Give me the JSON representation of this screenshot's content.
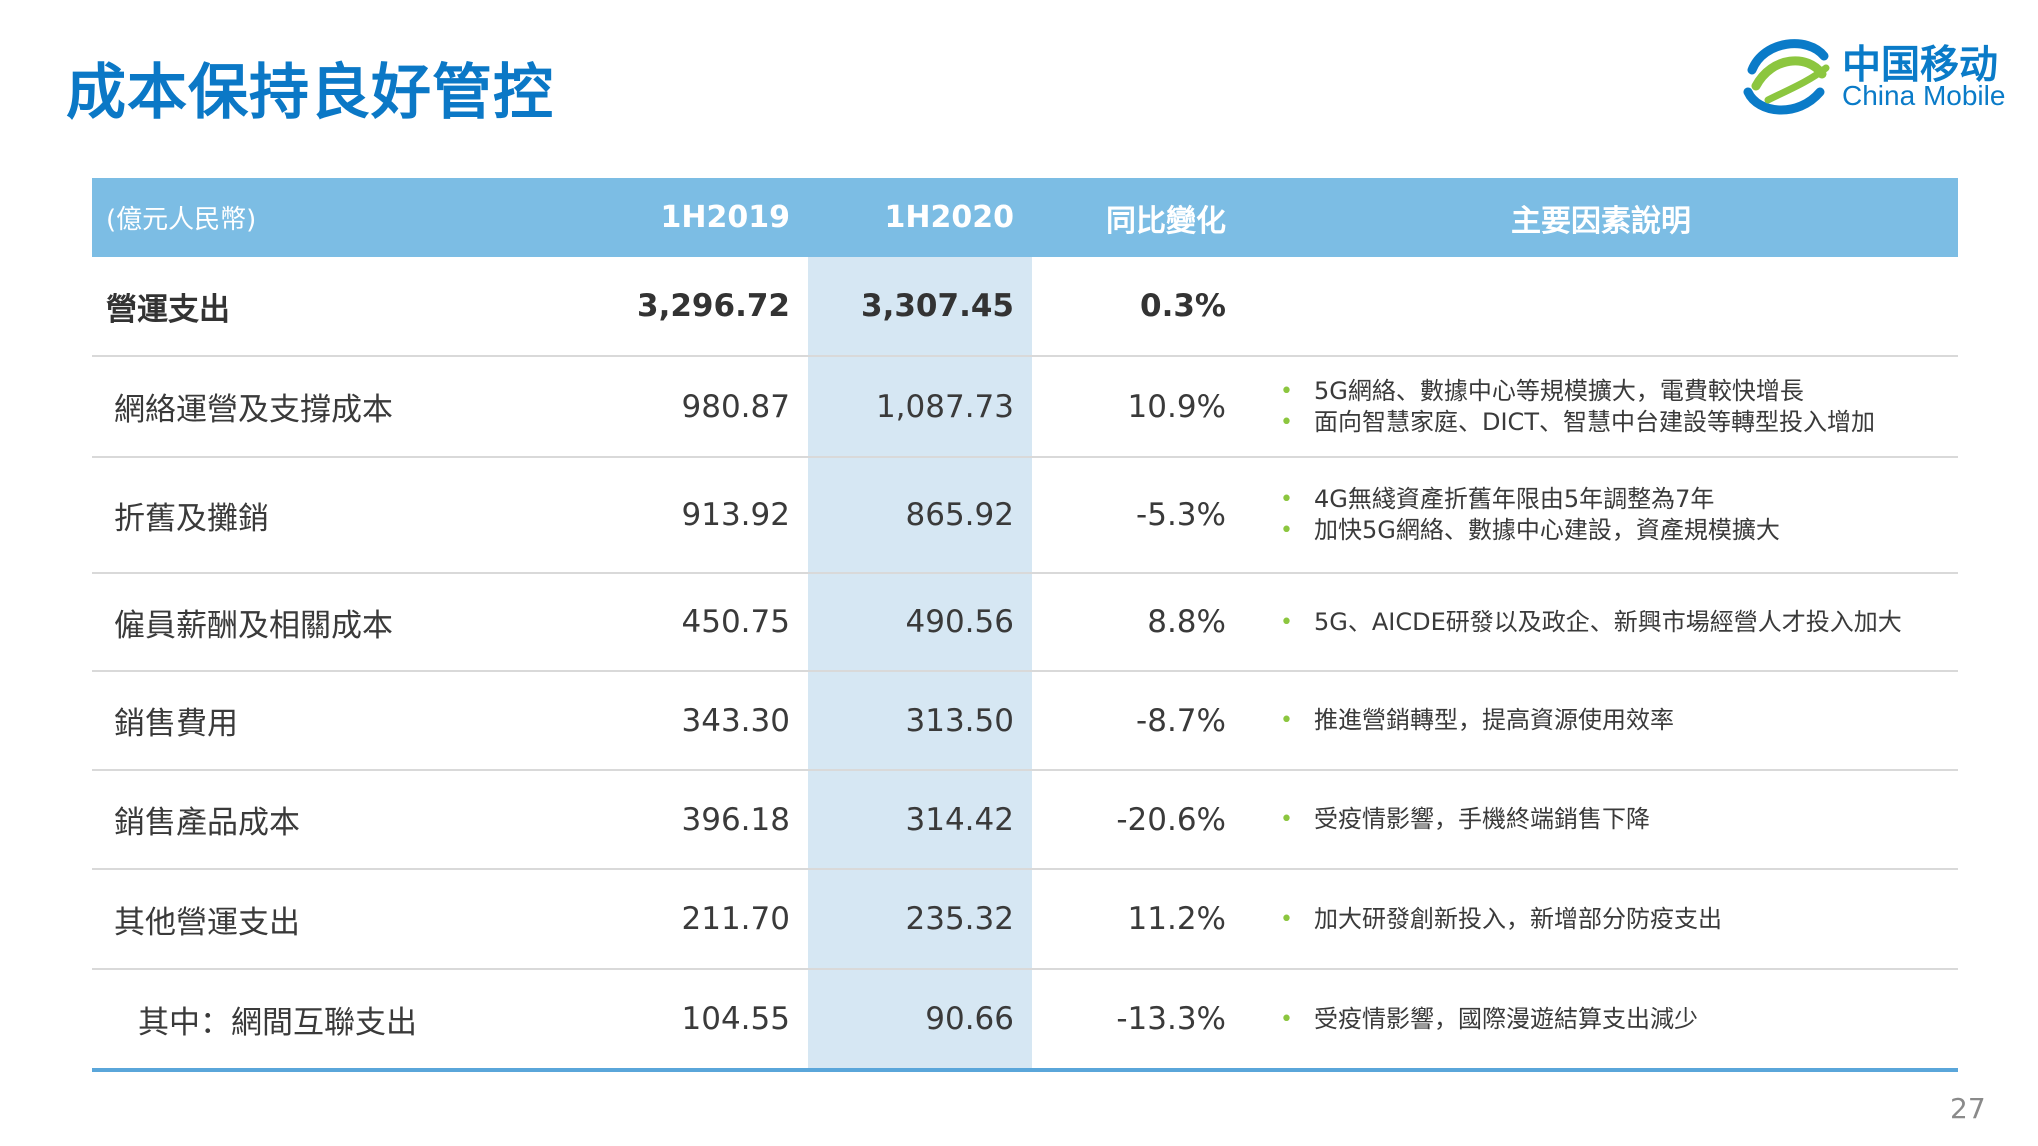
{
  "slide": {
    "title": "成本保持良好管控",
    "page_number": "27"
  },
  "logo": {
    "cn": "中国移动",
    "en": "China Mobile",
    "colors": {
      "blue": "#0a7bc8",
      "green": "#8cc63f"
    }
  },
  "table": {
    "headers": {
      "unit": "(億元人民幣)",
      "col_2019": "1H2019",
      "col_2020": "1H2020",
      "change": "同比變化",
      "factors": "主要因素說明"
    },
    "rows": [
      {
        "label": "營運支出",
        "v2019": "3,296.72",
        "v2020": "3,307.45",
        "change": "0.3%",
        "factors": []
      },
      {
        "label": "網絡運營及支撐成本",
        "v2019": "980.87",
        "v2020": "1,087.73",
        "change": "10.9%",
        "factors": [
          "5G網絡、數據中心等規模擴大，電費較快增長",
          "面向智慧家庭、DICT、智慧中台建設等轉型投入增加"
        ]
      },
      {
        "label": "折舊及攤銷",
        "v2019": "913.92",
        "v2020": "865.92",
        "change": "-5.3%",
        "factors": [
          "4G無綫資產折舊年限由5年調整為7年",
          "加快5G網絡、數據中心建設，資產規模擴大"
        ]
      },
      {
        "label": "僱員薪酬及相關成本",
        "v2019": "450.75",
        "v2020": "490.56",
        "change": "8.8%",
        "factors": [
          "5G、AICDE研發以及政企、新興市場經營人才投入加大"
        ]
      },
      {
        "label": "銷售費用",
        "v2019": "343.30",
        "v2020": "313.50",
        "change": "-8.7%",
        "factors": [
          "推進營銷轉型，提高資源使用效率"
        ]
      },
      {
        "label": "銷售產品成本",
        "v2019": "396.18",
        "v2020": "314.42",
        "change": "-20.6%",
        "factors": [
          "受疫情影響，手機終端銷售下降"
        ]
      },
      {
        "label": "其他營運支出",
        "v2019": "211.70",
        "v2020": "235.32",
        "change": "11.2%",
        "factors": [
          "加大研發創新投入，新增部分防疫支出"
        ]
      },
      {
        "label": "其中：網間互聯支出",
        "v2019": "104.55",
        "v2020": "90.66",
        "change": "-13.3%",
        "factors": [
          "受疫情影響，國際漫遊結算支出減少"
        ]
      }
    ],
    "bullet_glyph": "•",
    "colors": {
      "header_bg": "#7cbde4",
      "highlight_col": "#d6e7f3",
      "title": "#0b78c6",
      "bullet": "#8cc63f"
    }
  }
}
